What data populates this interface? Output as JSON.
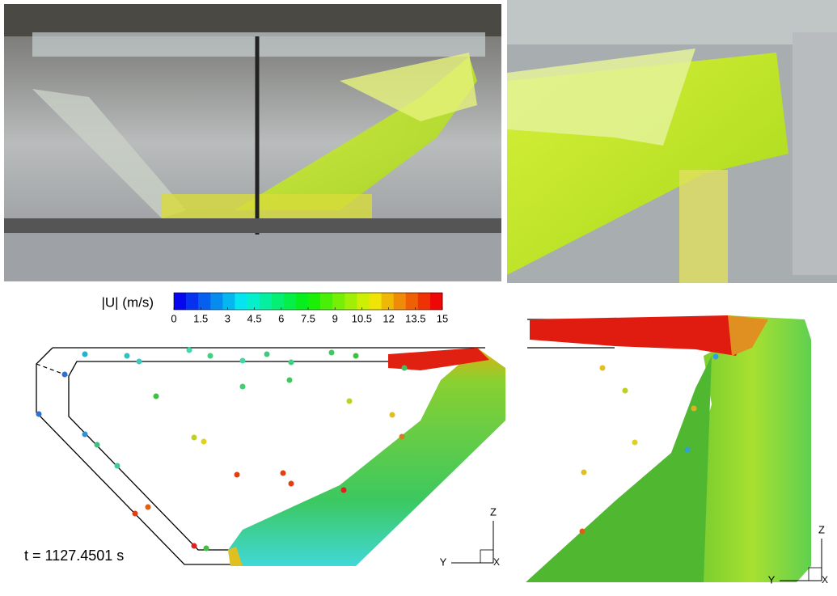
{
  "colorbar": {
    "title": "|U| (m/s)",
    "lim": [
      0,
      15
    ],
    "ticks": [
      0,
      1.5,
      3,
      4.5,
      6,
      7.5,
      9,
      10.5,
      12,
      13.5,
      15
    ]
  },
  "left_view": {
    "time_label": "t = 1127.4501 s",
    "axis_z": "Z",
    "axis_y": "Y",
    "axis_x": "X"
  },
  "right_view": {
    "axis_z": "Z",
    "axis_y": "Y",
    "axis_x": "X"
  }
}
